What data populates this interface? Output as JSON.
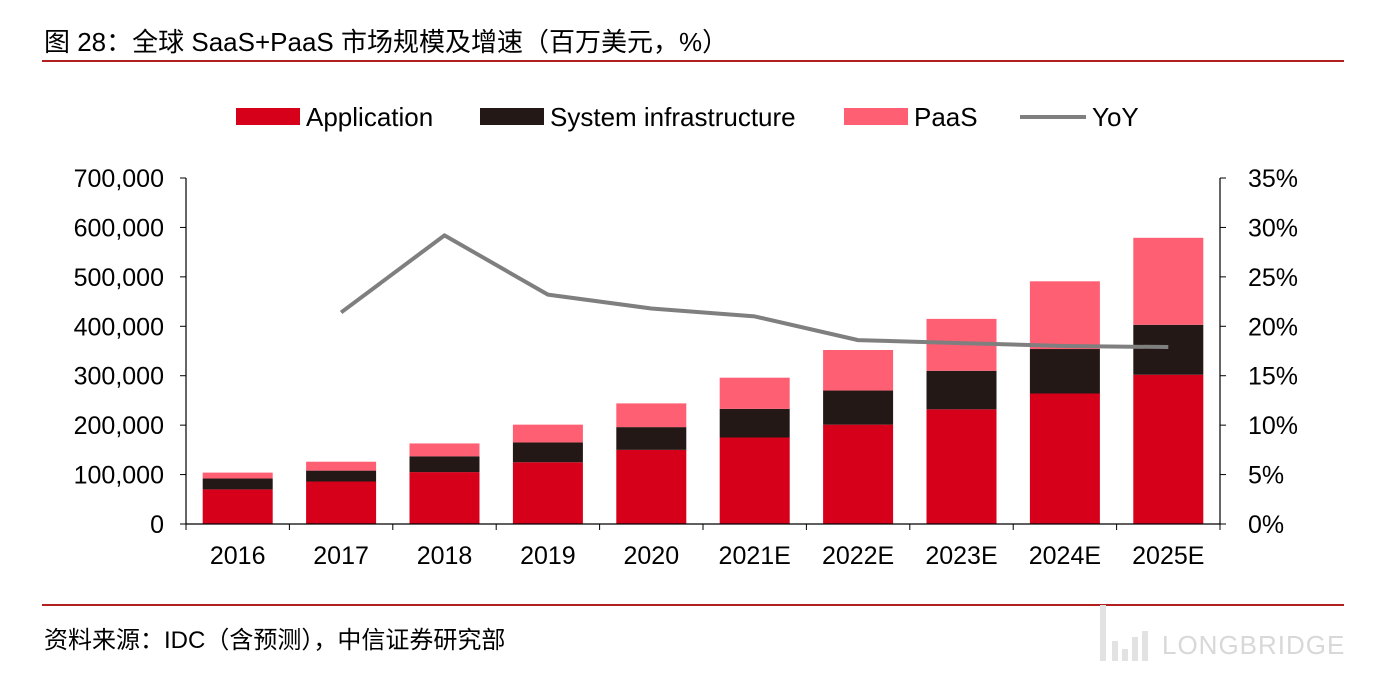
{
  "title": "图 28：全球 SaaS+PaaS 市场规模及增速（百万美元，%）",
  "source": "资料来源：IDC（含预测），中信证券研究部",
  "watermark": "LONGBRIDGE",
  "chart_data": {
    "type": "bar",
    "stacked": true,
    "categories": [
      "2016",
      "2017",
      "2018",
      "2019",
      "2020",
      "2021E",
      "2022E",
      "2023E",
      "2024E",
      "2025E"
    ],
    "series": [
      {
        "name": "Application",
        "kind": "bar",
        "axis": "left",
        "color": "#d7001a",
        "values": [
          70000,
          86000,
          105000,
          125000,
          150000,
          175000,
          201000,
          232000,
          264000,
          302000
        ]
      },
      {
        "name": "System infrastructure",
        "kind": "bar",
        "axis": "left",
        "color": "#231815",
        "values": [
          22000,
          22000,
          32000,
          40000,
          46000,
          58000,
          69000,
          78000,
          90000,
          101000
        ]
      },
      {
        "name": "PaaS",
        "kind": "bar",
        "axis": "left",
        "color": "#ff5f73",
        "values": [
          12000,
          18000,
          26000,
          36000,
          48000,
          63000,
          82000,
          105000,
          137000,
          176000
        ]
      },
      {
        "name": "YoY",
        "kind": "line",
        "axis": "right",
        "color": "#7f7f7f",
        "values": [
          null,
          21.4,
          29.2,
          23.2,
          21.8,
          21.0,
          18.6,
          18.3,
          18.0,
          17.9
        ]
      }
    ],
    "y_left": {
      "min": 0,
      "max": 700000,
      "step": 100000,
      "ticks": [
        "0",
        "100,000",
        "200,000",
        "300,000",
        "400,000",
        "500,000",
        "600,000",
        "700,000"
      ]
    },
    "y_right": {
      "min": 0,
      "max": 35,
      "step": 5,
      "ticks": [
        "0%",
        "5%",
        "10%",
        "15%",
        "20%",
        "25%",
        "30%",
        "35%"
      ]
    },
    "legend_position": "top-center",
    "grid": false
  }
}
